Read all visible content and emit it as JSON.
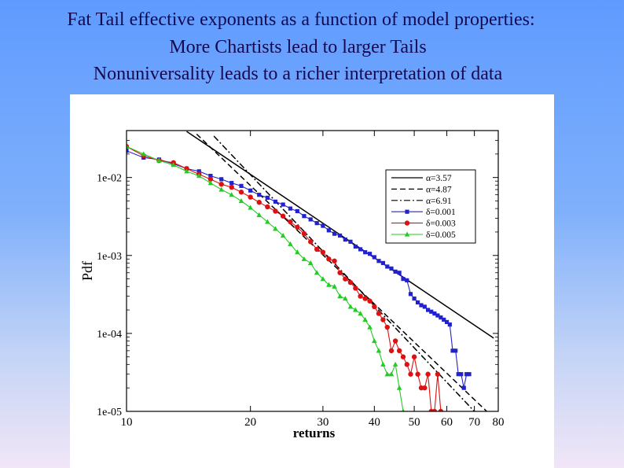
{
  "slide": {
    "title_lines": [
      "Fat Tail effective exponents as a function of model properties:",
      "More Chartists lead to larger Tails",
      "Nonuniversality leads to a richer interpretation of data"
    ]
  },
  "chart_data": {
    "type": "line",
    "title": "",
    "xlabel": "returns",
    "ylabel": "Pdf",
    "xscale": "log",
    "yscale": "log",
    "xlim": [
      10,
      80
    ],
    "ylim": [
      1e-05,
      0.04
    ],
    "x_ticks": [
      10,
      20,
      30,
      40,
      50,
      60,
      70,
      80
    ],
    "x_tick_labels": [
      "10",
      "20",
      "30",
      "40",
      "50",
      "60",
      "70",
      "80"
    ],
    "y_ticks": [
      0.01,
      0.001,
      0.0001,
      1e-05
    ],
    "y_tick_labels": [
      "1e-02",
      "1e-03",
      "1e-04",
      "1e-05"
    ],
    "legend_position": "top-right",
    "fit_lines": [
      {
        "label": "α=3.57",
        "style": "solid",
        "x": [
          14,
          78
        ],
        "y": [
          0.039,
          8.7e-05
        ]
      },
      {
        "label": "α=4.87",
        "style": "dashed",
        "x": [
          14.8,
          75
        ],
        "y": [
          0.036,
          1e-05
        ]
      },
      {
        "label": "α=6.91",
        "style": "dashdot",
        "x": [
          16.3,
          70
        ],
        "y": [
          0.034,
          1e-05
        ]
      }
    ],
    "series": [
      {
        "name": "δ=0.001",
        "color": "#2222cc",
        "marker": "square",
        "x": [
          10,
          11,
          12,
          13,
          14,
          15,
          16,
          17,
          18,
          19,
          20,
          21,
          22,
          23,
          24,
          25,
          26,
          27,
          28,
          29,
          30,
          31,
          32,
          33,
          34,
          35,
          36,
          37,
          38,
          39,
          40,
          41,
          42,
          43,
          44,
          45,
          46,
          47,
          48,
          49,
          50,
          51,
          52,
          53,
          54,
          55,
          56,
          57,
          58,
          59,
          60,
          61,
          62,
          63,
          64,
          65,
          66,
          67,
          68
        ],
        "y": [
          0.022,
          0.018,
          0.017,
          0.015,
          0.013,
          0.012,
          0.0105,
          0.0095,
          0.0085,
          0.0078,
          0.0068,
          0.006,
          0.0055,
          0.0049,
          0.0045,
          0.004,
          0.0037,
          0.0032,
          0.0029,
          0.0026,
          0.0024,
          0.0021,
          0.0019,
          0.0018,
          0.0016,
          0.0015,
          0.0013,
          0.0012,
          0.0011,
          0.00105,
          0.00095,
          0.00085,
          0.0008,
          0.00072,
          0.00068,
          0.00062,
          0.0006,
          0.0005,
          0.00048,
          0.00032,
          0.00028,
          0.00025,
          0.00023,
          0.00022,
          0.0002,
          0.00019,
          0.00018,
          0.00017,
          0.00016,
          0.00015,
          0.00014,
          0.00013,
          6e-05,
          6e-05,
          3e-05,
          3e-05,
          2e-05,
          3e-05,
          3e-05
        ]
      },
      {
        "name": "δ=0.003",
        "color": "#dd1111",
        "marker": "circle",
        "x": [
          10,
          11,
          12,
          13,
          14,
          15,
          16,
          17,
          18,
          19,
          20,
          21,
          22,
          23,
          24,
          25,
          26,
          27,
          28,
          29,
          30,
          31,
          32,
          33,
          34,
          35,
          36,
          37,
          38,
          39,
          40,
          41,
          42,
          43,
          44,
          45,
          46,
          47,
          48,
          49,
          50,
          51,
          52,
          53,
          54,
          55,
          56,
          57,
          58
        ],
        "y": [
          0.025,
          0.019,
          0.0165,
          0.0155,
          0.013,
          0.011,
          0.0095,
          0.0082,
          0.0075,
          0.0065,
          0.0056,
          0.0048,
          0.0042,
          0.0037,
          0.0032,
          0.0027,
          0.0023,
          0.0019,
          0.0015,
          0.0012,
          0.0011,
          0.0009,
          0.00085,
          0.0006,
          0.0005,
          0.00045,
          0.00038,
          0.0003,
          0.00028,
          0.00026,
          0.00022,
          0.00018,
          0.00015,
          0.00012,
          6e-05,
          8e-05,
          6e-05,
          5e-05,
          4e-05,
          3e-05,
          5e-05,
          3e-05,
          2e-05,
          2e-05,
          3e-05,
          1e-05,
          1e-05,
          3e-05,
          1e-05
        ]
      },
      {
        "name": "δ=0.005",
        "color": "#22cc22",
        "marker": "triangle",
        "x": [
          10,
          11,
          12,
          13,
          14,
          15,
          16,
          17,
          18,
          19,
          20,
          21,
          22,
          23,
          24,
          25,
          26,
          27,
          28,
          29,
          30,
          31,
          32,
          33,
          34,
          35,
          36,
          37,
          38,
          39,
          40,
          41,
          42,
          43,
          44,
          45,
          46,
          47
        ],
        "y": [
          0.025,
          0.02,
          0.0165,
          0.0145,
          0.012,
          0.0105,
          0.0085,
          0.007,
          0.006,
          0.005,
          0.0041,
          0.0033,
          0.0027,
          0.0022,
          0.0018,
          0.0014,
          0.0011,
          0.0009,
          0.0008,
          0.0006,
          0.0005,
          0.00042,
          0.0004,
          0.0003,
          0.00028,
          0.00022,
          0.0002,
          0.00018,
          0.00015,
          0.00012,
          8e-05,
          6e-05,
          4e-05,
          3e-05,
          3e-05,
          4e-05,
          2e-05,
          1e-05
        ]
      }
    ]
  }
}
